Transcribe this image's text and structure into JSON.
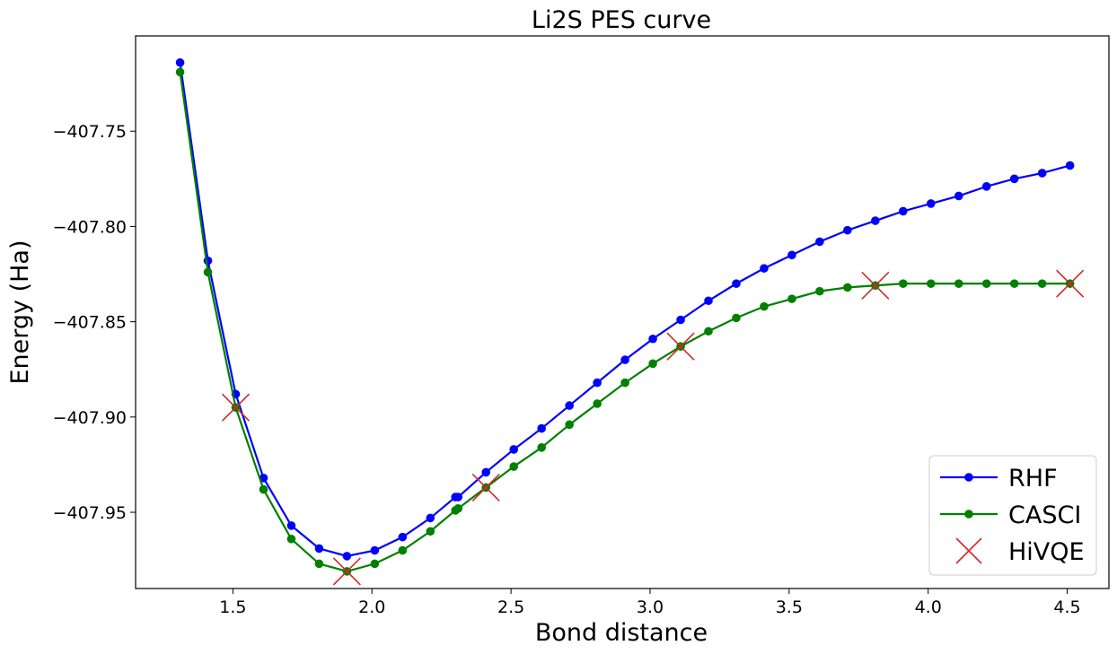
{
  "chart_data": {
    "type": "line",
    "title": "Li2S PES curve",
    "xlabel": "Bond distance",
    "ylabel": "Energy (Ha)",
    "xlim": [
      1.15,
      4.65
    ],
    "ylim": [
      -407.99,
      -407.7
    ],
    "xticks": [
      1.5,
      2.0,
      2.5,
      3.0,
      3.5,
      4.0,
      4.5
    ],
    "xtick_labels": [
      "1.5",
      "2.0",
      "2.5",
      "3.0",
      "3.5",
      "4.0",
      "4.5"
    ],
    "yticks": [
      -407.75,
      -407.8,
      -407.85,
      -407.9,
      -407.95
    ],
    "ytick_labels": [
      "−407.75",
      "−407.80",
      "−407.85",
      "−407.90",
      "−407.95"
    ],
    "grid": false,
    "legend_position": "lower-right",
    "series": [
      {
        "name": "RHF",
        "color": "#0000ff",
        "style": "line-marker",
        "x": [
          1.31,
          1.41,
          1.51,
          1.61,
          1.71,
          1.81,
          1.91,
          2.01,
          2.11,
          2.21,
          2.3,
          2.31,
          2.41,
          2.51,
          2.61,
          2.71,
          2.81,
          2.91,
          3.01,
          3.11,
          3.21,
          3.31,
          3.41,
          3.51,
          3.61,
          3.71,
          3.81,
          3.91,
          4.01,
          4.11,
          4.21,
          4.31,
          4.41,
          4.51
        ],
        "y": [
          -407.714,
          -407.818,
          -407.888,
          -407.932,
          -407.957,
          -407.969,
          -407.973,
          -407.97,
          -407.963,
          -407.953,
          -407.942,
          -407.942,
          -407.929,
          -407.917,
          -407.906,
          -407.894,
          -407.882,
          -407.87,
          -407.859,
          -407.849,
          -407.839,
          -407.83,
          -407.822,
          -407.815,
          -407.808,
          -407.802,
          -407.797,
          -407.792,
          -407.788,
          -407.784,
          -407.779,
          -407.775,
          -407.772,
          -407.768
        ]
      },
      {
        "name": "CASCI",
        "color": "#008000",
        "style": "line-marker",
        "x": [
          1.31,
          1.41,
          1.51,
          1.61,
          1.71,
          1.81,
          1.91,
          2.01,
          2.11,
          2.21,
          2.3,
          2.31,
          2.41,
          2.51,
          2.61,
          2.71,
          2.81,
          2.91,
          3.01,
          3.11,
          3.21,
          3.31,
          3.41,
          3.51,
          3.61,
          3.71,
          3.81,
          3.91,
          4.01,
          4.11,
          4.21,
          4.31,
          4.41,
          4.51
        ],
        "y": [
          -407.719,
          -407.824,
          -407.895,
          -407.938,
          -407.964,
          -407.977,
          -407.981,
          -407.977,
          -407.97,
          -407.96,
          -407.949,
          -407.948,
          -407.937,
          -407.926,
          -407.916,
          -407.904,
          -407.893,
          -407.882,
          -407.872,
          -407.863,
          -407.855,
          -407.848,
          -407.842,
          -407.838,
          -407.834,
          -407.832,
          -407.831,
          -407.83,
          -407.83,
          -407.83,
          -407.83,
          -407.83,
          -407.83,
          -407.83
        ]
      },
      {
        "name": "HiVQE",
        "color": "#d62728",
        "style": "x-marker",
        "x": [
          1.51,
          1.91,
          2.41,
          3.11,
          3.81,
          4.51
        ],
        "y": [
          -407.895,
          -407.981,
          -407.937,
          -407.863,
          -407.831,
          -407.83
        ]
      }
    ]
  }
}
